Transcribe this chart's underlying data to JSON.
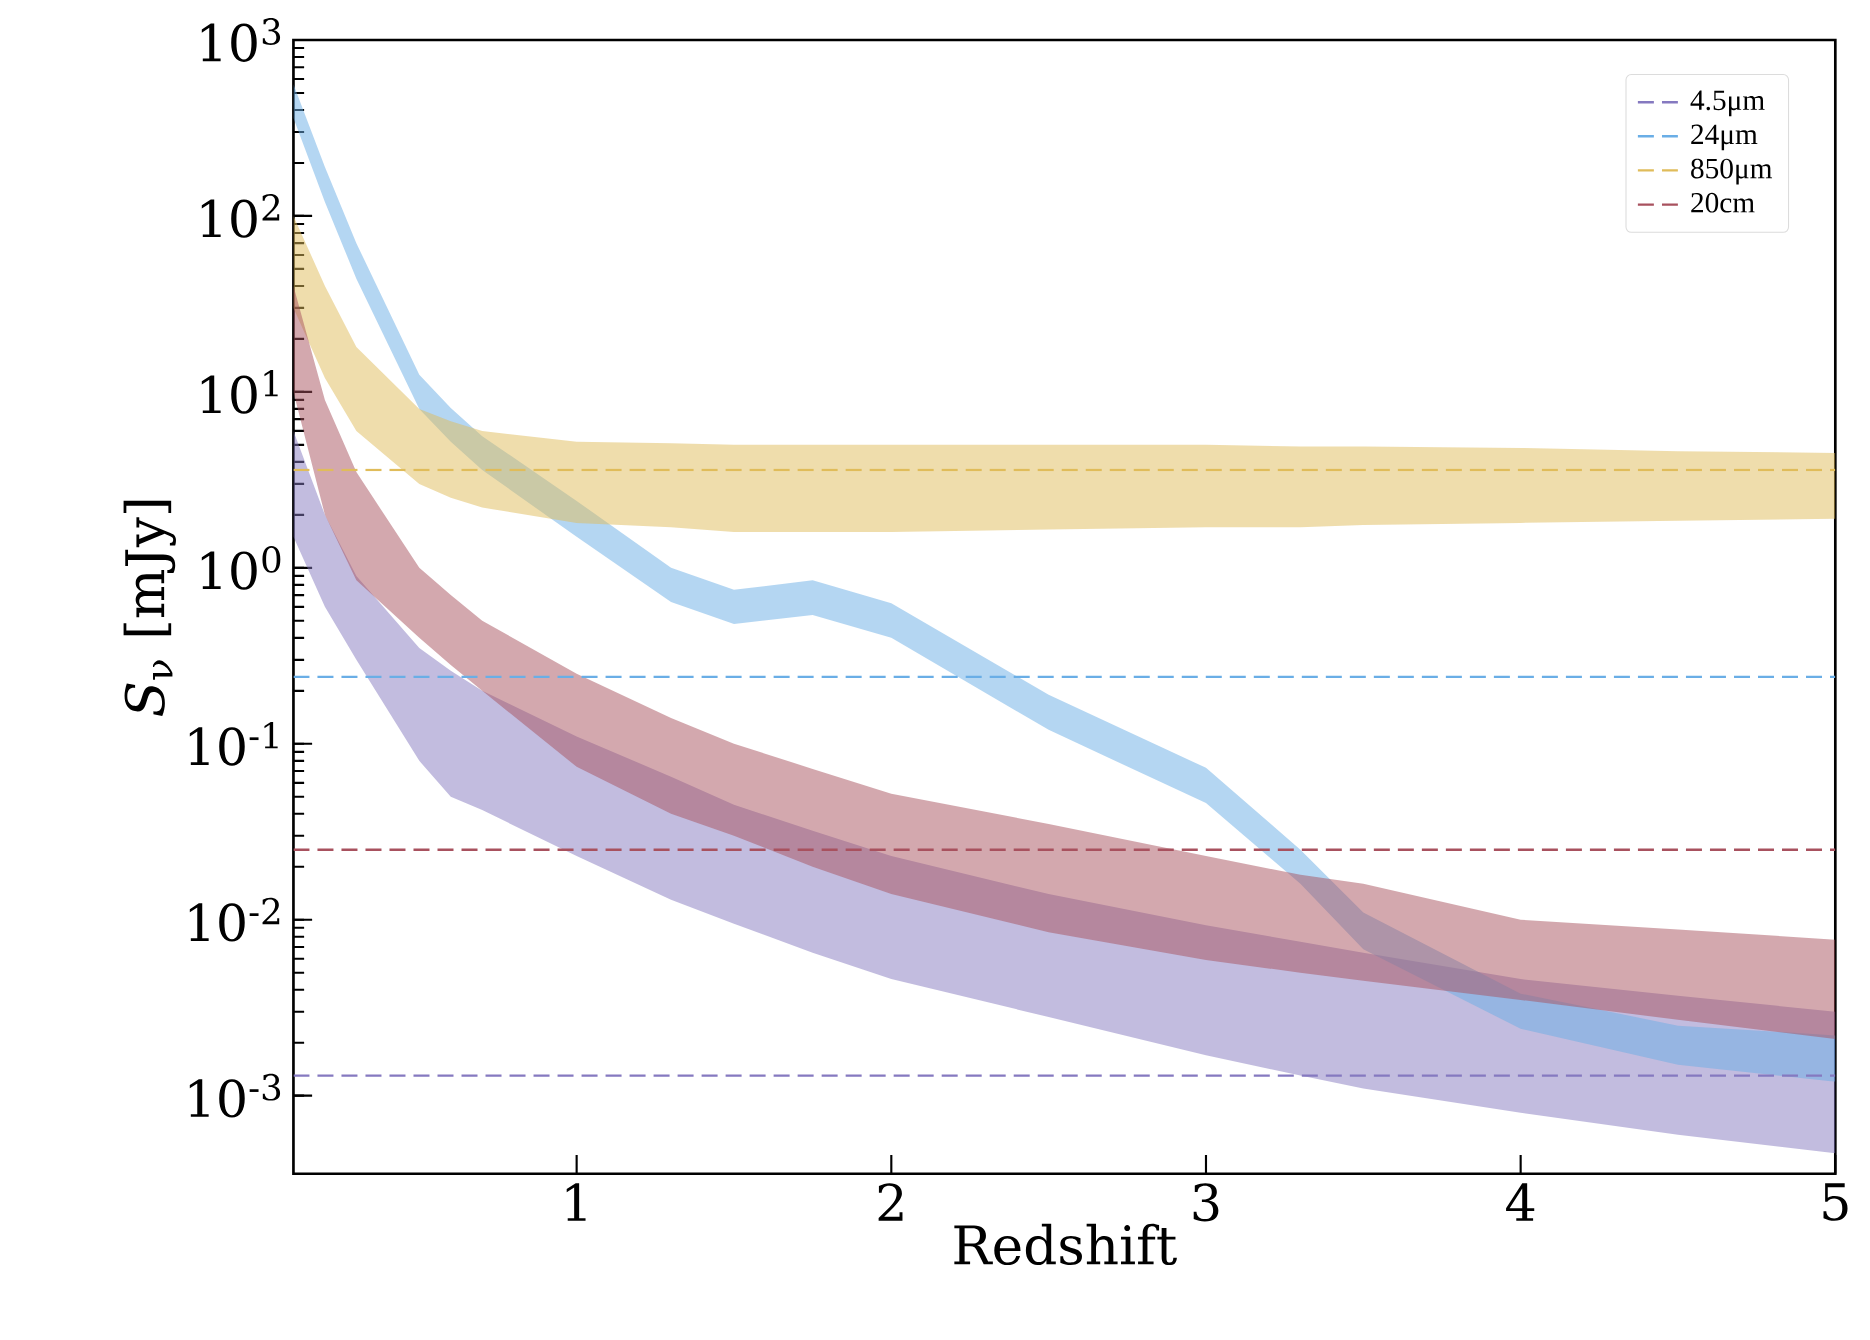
{
  "chart_data": {
    "type": "line",
    "xlabel": "Redshift",
    "ylabel": "*S*$_{ν}$ [mJy]",
    "log": "y",
    "legend": "top right",
    "xlim": [
      0.1,
      5
    ],
    "ylim": [
      0.00036,
      1000
    ],
    "xticks": [
      1,
      2,
      3,
      4,
      5
    ],
    "yticks": [
      {
        "value": 0.001,
        "label": "10$^{-3}$"
      },
      {
        "value": 0.01,
        "label": "10$^{-2}$"
      },
      {
        "value": 0.1,
        "label": "10$^{-1}$"
      },
      {
        "value": 1,
        "label": "10$^{0}$"
      },
      {
        "value": 10,
        "label": "10$^{1}$"
      },
      {
        "value": 100,
        "label": "10$^{2}$"
      },
      {
        "value": 1000,
        "label": "10$^{3}$"
      }
    ],
    "x": [
      0.1,
      0.2,
      0.3,
      0.5,
      0.6,
      0.7,
      1,
      1.3,
      1.5,
      1.75,
      2,
      2.5,
      3,
      3.3,
      3.5,
      4,
      4.5,
      5
    ],
    "series": [
      {
        "name": "4.5μm",
        "color": "#8579c0",
        "line_style": "dashed",
        "values": [
          0.0013,
          0.0013,
          0.0013,
          0.0013,
          0.0013,
          0.0013,
          0.0013,
          0.0013,
          0.0013,
          0.0013,
          0.0013,
          0.0013,
          0.0013,
          0.0013,
          0.0013,
          0.0013,
          0.0013,
          0.0013
        ],
        "upper": [
          6,
          2,
          0.9,
          0.35,
          0.26,
          0.2,
          0.11,
          0.065,
          0.045,
          0.032,
          0.023,
          0.014,
          0.0093,
          0.0075,
          0.0065,
          0.0046,
          0.0037,
          0.003
        ],
        "lower": [
          1.5,
          0.6,
          0.3,
          0.08,
          0.05,
          0.042,
          0.023,
          0.013,
          0.0095,
          0.0065,
          0.0046,
          0.0028,
          0.0017,
          0.0013,
          0.0011,
          0.0008,
          0.0006,
          0.00047
        ]
      },
      {
        "name": "24μm",
        "color": "#6aaee6",
        "line_style": "dashed",
        "values": [
          0.24,
          0.24,
          0.24,
          0.24,
          0.24,
          0.24,
          0.24,
          0.24,
          0.24,
          0.24,
          0.24,
          0.24,
          0.24,
          0.24,
          0.24,
          0.24,
          0.24,
          0.24
        ],
        "upper": [
          560,
          190,
          70,
          12.5,
          8.1,
          5.6,
          2.4,
          1.0,
          0.75,
          0.85,
          0.63,
          0.19,
          0.073,
          0.025,
          0.011,
          0.0038,
          0.0025,
          0.0022
        ],
        "lower": [
          360,
          120,
          44,
          8,
          5.2,
          3.6,
          1.5,
          0.64,
          0.48,
          0.54,
          0.4,
          0.12,
          0.046,
          0.016,
          0.0068,
          0.0024,
          0.0015,
          0.0012
        ]
      },
      {
        "name": "850μm",
        "color": "#e0bc5a",
        "line_style": "dashed",
        "values": [
          3.6,
          3.6,
          3.6,
          3.6,
          3.6,
          3.6,
          3.6,
          3.6,
          3.6,
          3.6,
          3.6,
          3.6,
          3.6,
          3.6,
          3.6,
          3.6,
          3.6,
          3.6
        ],
        "upper": [
          100,
          40,
          18,
          8,
          6.8,
          6,
          5.2,
          5.1,
          5,
          5,
          5,
          5,
          5,
          4.9,
          4.9,
          4.8,
          4.6,
          4.5
        ],
        "lower": [
          30,
          12,
          6,
          3,
          2.5,
          2.2,
          1.8,
          1.7,
          1.6,
          1.6,
          1.6,
          1.65,
          1.7,
          1.7,
          1.75,
          1.8,
          1.85,
          1.9
        ]
      },
      {
        "name": "20cm",
        "color": "#a8515e",
        "line_style": "dashed",
        "values": [
          0.025,
          0.025,
          0.025,
          0.025,
          0.025,
          0.025,
          0.025,
          0.025,
          0.025,
          0.025,
          0.025,
          0.025,
          0.025,
          0.025,
          0.025,
          0.025,
          0.025,
          0.025
        ],
        "upper": [
          40,
          9,
          3.5,
          1.0,
          0.7,
          0.5,
          0.25,
          0.14,
          0.1,
          0.072,
          0.052,
          0.035,
          0.023,
          0.018,
          0.016,
          0.01,
          0.0088,
          0.0077
        ],
        "lower": [
          10,
          2,
          0.85,
          0.4,
          0.28,
          0.2,
          0.074,
          0.04,
          0.03,
          0.02,
          0.014,
          0.0085,
          0.0059,
          0.005,
          0.0045,
          0.0035,
          0.0027,
          0.0021
        ]
      }
    ]
  }
}
